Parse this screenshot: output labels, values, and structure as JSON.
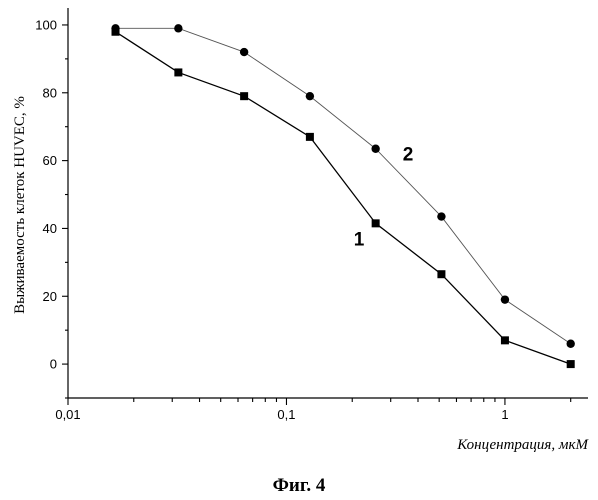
{
  "caption": "Фиг. 4",
  "chart_data": {
    "type": "line",
    "xlabel": "Концентрация, мкМ",
    "ylabel": "Выживаемость клеток HUVEC, %",
    "xscale": "log",
    "xlim": [
      0.01,
      2.4
    ],
    "ylim": [
      -10,
      105
    ],
    "x_ticks": [
      0.01,
      0.1,
      1
    ],
    "x_tick_labels": [
      "0,01",
      "0,1",
      "1"
    ],
    "y_ticks": [
      0,
      20,
      40,
      60,
      80,
      100
    ],
    "y_tick_labels": [
      "0",
      "20",
      "40",
      "60",
      "80",
      "100"
    ],
    "grid": false,
    "series": [
      {
        "name": "1",
        "marker": "square",
        "color": "#000000",
        "x": [
          0.0165,
          0.032,
          0.064,
          0.128,
          0.256,
          0.512,
          1.0,
          2.0
        ],
        "y": [
          98,
          86,
          79,
          67,
          41.5,
          26.5,
          7,
          0
        ]
      },
      {
        "name": "2",
        "marker": "circle",
        "color": "#555555",
        "x": [
          0.0165,
          0.032,
          0.064,
          0.128,
          0.256,
          0.512,
          1.0,
          2.0
        ],
        "y": [
          99,
          99,
          92,
          79,
          63.5,
          43.5,
          19,
          6
        ]
      }
    ]
  }
}
